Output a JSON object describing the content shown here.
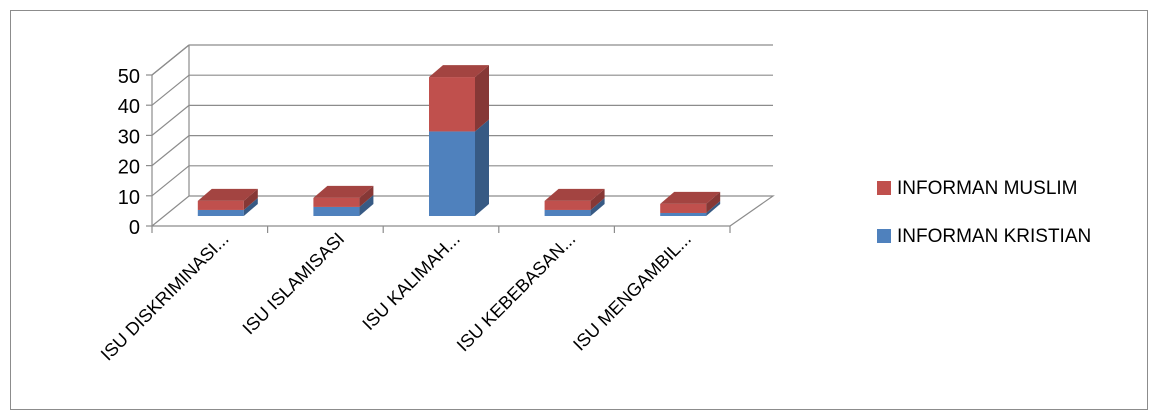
{
  "chart_data": {
    "type": "bar",
    "stacked": true,
    "three_d": true,
    "categories": [
      "ISU DISKRIMINASI...",
      "ISU ISLAMISASI",
      "ISU KALIMAH...",
      "ISU KEBEBASAN...",
      "ISU MENGAMBIL..."
    ],
    "series": [
      {
        "name": "INFORMAN KRISTIAN",
        "values": [
          2,
          3,
          28,
          2,
          1
        ]
      },
      {
        "name": "INFORMAN MUSLIM",
        "values": [
          3,
          3,
          18,
          3,
          3
        ]
      }
    ],
    "yticks": [
      "0",
      "10",
      "20",
      "30",
      "40",
      "50"
    ],
    "ylim": [
      0,
      50
    ],
    "grid": true,
    "legend_position": "right",
    "colors": {
      "INFORMAN KRISTIAN": "#4f81bd",
      "INFORMAN MUSLIM": "#c0504d"
    }
  }
}
